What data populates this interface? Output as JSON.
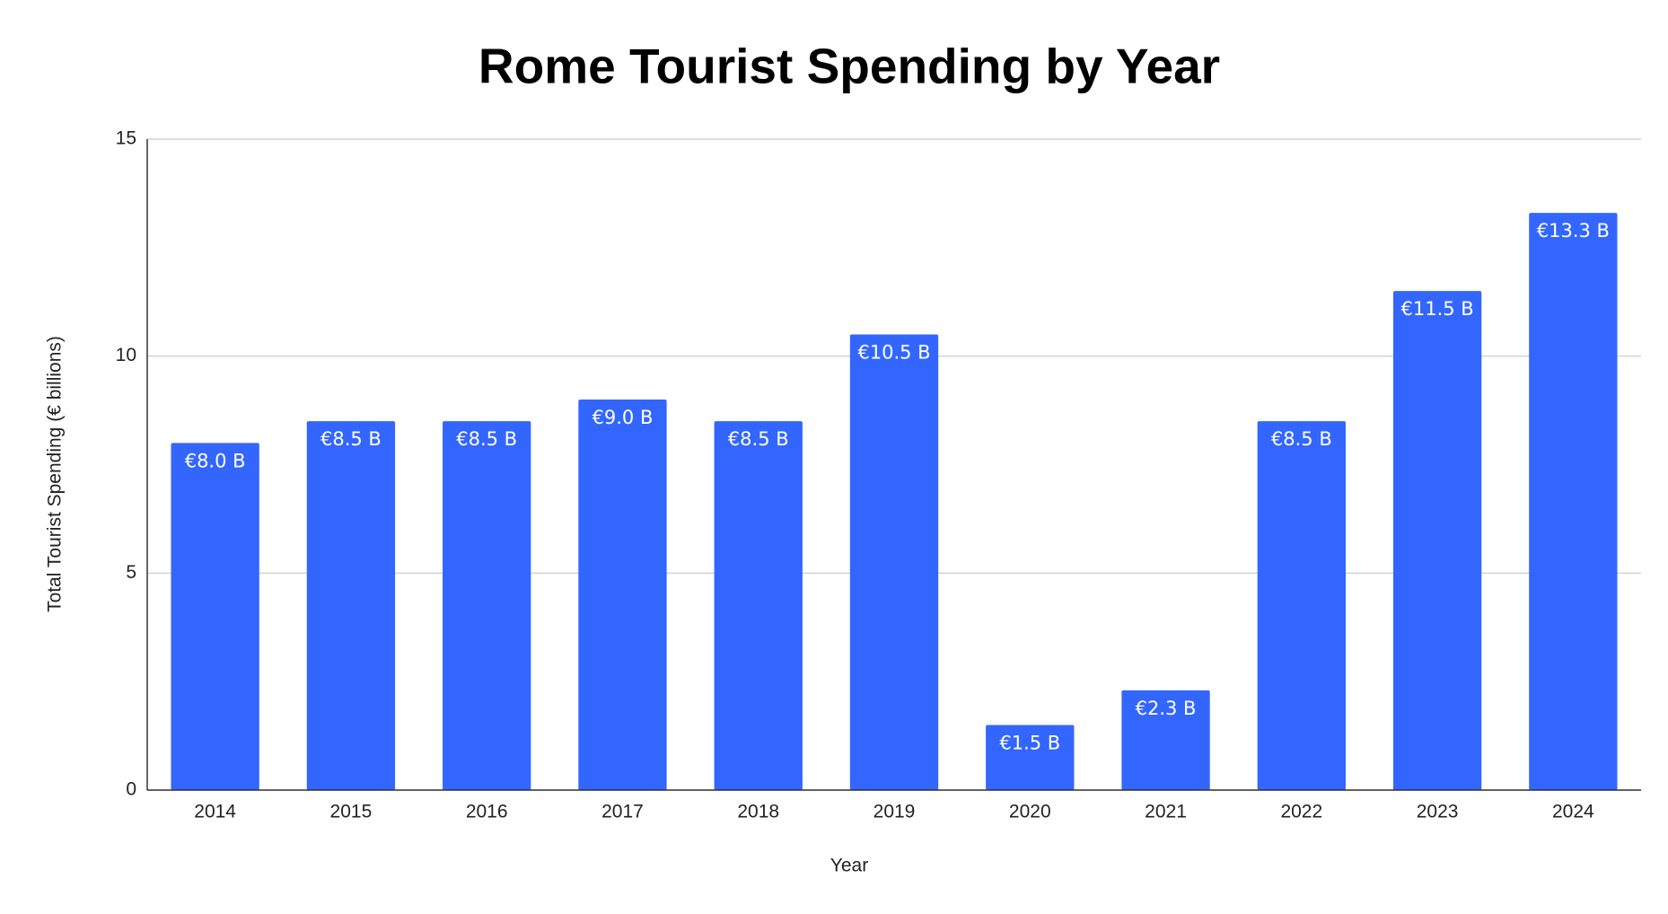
{
  "chart_data": {
    "type": "bar",
    "title": "Rome Tourist Spending by Year",
    "x_label": "Year",
    "y_label": "Total Tourist Spending (€ billions)",
    "categories": [
      "2014",
      "2015",
      "2016",
      "2017",
      "2018",
      "2019",
      "2020",
      "2021",
      "2022",
      "2023",
      "2024"
    ],
    "values": [
      8.0,
      8.5,
      8.5,
      9.0,
      8.5,
      10.5,
      1.5,
      2.3,
      8.5,
      11.5,
      13.3
    ],
    "value_labels": [
      "€8.0 B",
      "€8.5 B",
      "€8.5 B",
      "€9.0 B",
      "€8.5 B",
      "€10.5 B",
      "€1.5 B",
      "€2.3 B",
      "€8.5 B",
      "€11.5 B",
      "€13.3 B"
    ],
    "color": "#3366ff",
    "ylim": [
      0,
      15
    ],
    "yticks": [
      0,
      5,
      10,
      15
    ],
    "grid": true
  }
}
